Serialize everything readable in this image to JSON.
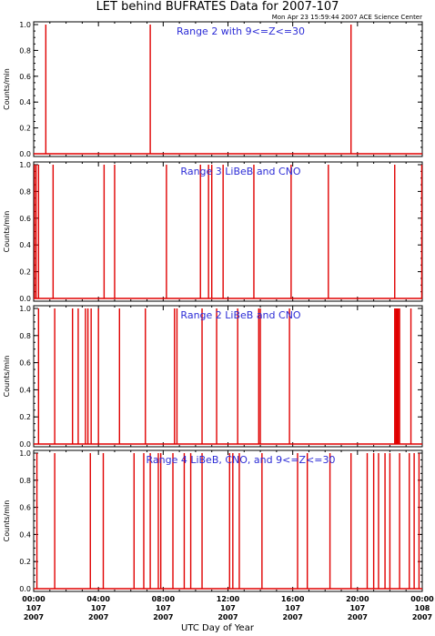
{
  "title": "LET behind BUFRATES Data for 2007-107",
  "timestamp": "Mon Apr 23 15:59:44 2007 ACE Science Center",
  "xlabel": "UTC Day of Year",
  "colors": {
    "data": "#e00000",
    "panel_label": "#2d2dd6",
    "axes": "#000000"
  },
  "x_ticks": [
    {
      "hour": 0,
      "label": "00:00",
      "doy": "107",
      "year": "2007"
    },
    {
      "hour": 4,
      "label": "04:00",
      "doy": "107",
      "year": "2007"
    },
    {
      "hour": 8,
      "label": "08:00",
      "doy": "107",
      "year": "2007"
    },
    {
      "hour": 12,
      "label": "12:00",
      "doy": "107",
      "year": "2007"
    },
    {
      "hour": 16,
      "label": "16:00",
      "doy": "107",
      "year": "2007"
    },
    {
      "hour": 20,
      "label": "20:00",
      "doy": "107",
      "year": "2007"
    },
    {
      "hour": 24,
      "label": "00:00",
      "doy": "108",
      "year": "2007"
    }
  ],
  "chart_data": [
    {
      "type": "line",
      "label": "Range 2 with 9<=Z<=30",
      "ylabel": "Counts/min",
      "ylim": [
        0,
        1
      ],
      "yticks": [
        "0.0",
        "0.2",
        "0.4",
        "0.6",
        "0.8",
        "1.0"
      ],
      "xlim_hours": [
        0,
        24
      ],
      "spikes_hours": [
        0.75,
        7.2,
        19.6
      ]
    },
    {
      "type": "line",
      "label": "Range 3 LiBeB and CNO",
      "ylabel": "Counts/min",
      "ylim": [
        0,
        1
      ],
      "yticks": [
        "0.0",
        "0.2",
        "0.4",
        "0.6",
        "0.8",
        "1.0"
      ],
      "xlim_hours": [
        0,
        24
      ],
      "spikes_hours": [
        0.05,
        0.15,
        0.3,
        1.2,
        4.35,
        5.0,
        8.2,
        10.3,
        10.8,
        11.0,
        11.7,
        13.6,
        15.9,
        18.2,
        22.3,
        23.97
      ]
    },
    {
      "type": "line",
      "label": "Range 2 LiBeB and CNO",
      "ylabel": "Counts/min",
      "ylim": [
        0,
        1
      ],
      "yticks": [
        "0.0",
        "0.2",
        "0.4",
        "0.6",
        "0.8",
        "1.0"
      ],
      "xlim_hours": [
        0,
        24
      ],
      "spikes_hours": [
        0.3,
        1.3,
        2.4,
        2.75,
        3.2,
        3.35,
        3.55,
        4.0,
        5.3,
        6.9,
        8.7,
        8.85,
        10.4,
        11.3,
        12.6,
        13.9,
        14.0,
        15.8,
        22.3,
        22.4,
        22.5,
        22.6,
        23.3
      ],
      "thick_spikes_hours": [
        22.45
      ]
    },
    {
      "type": "line",
      "label": "Range 4 LiBeB, CNO, and 9<=Z<=30",
      "ylabel": "Counts/min",
      "ylim": [
        0,
        1
      ],
      "yticks": [
        "0.0",
        "0.2",
        "0.4",
        "0.6",
        "0.8",
        "1.0"
      ],
      "xlim_hours": [
        0,
        24
      ],
      "spikes_hours": [
        0.2,
        1.3,
        3.5,
        4.3,
        6.2,
        6.8,
        7.2,
        7.7,
        7.85,
        8.6,
        9.3,
        9.7,
        10.4,
        12.1,
        12.3,
        12.7,
        14.1,
        16.3,
        16.9,
        18.3,
        19.6,
        20.6,
        21.0,
        21.3,
        21.7,
        22.0,
        22.6,
        23.2,
        23.5,
        23.8
      ]
    }
  ]
}
